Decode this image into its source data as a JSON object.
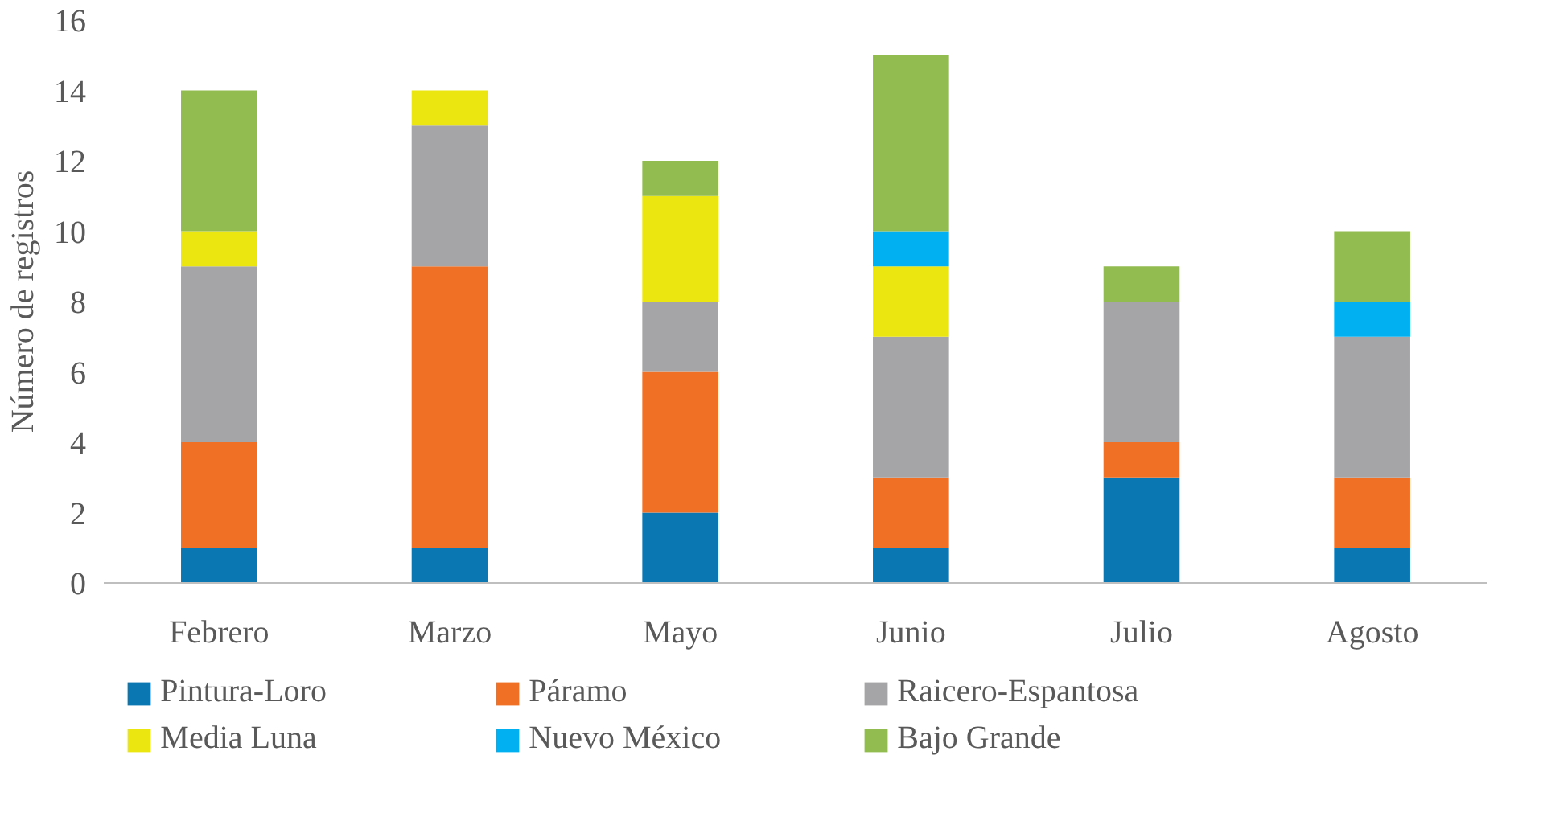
{
  "chart_data": {
    "type": "bar",
    "stacked": true,
    "ylabel": "Número de registros",
    "categories": [
      "Febrero",
      "Marzo",
      "Mayo",
      "Junio",
      "Julio",
      "Agosto"
    ],
    "ylim": [
      0,
      16
    ],
    "yticks": [
      0,
      2,
      4,
      6,
      8,
      10,
      12,
      14,
      16
    ],
    "grid": false,
    "legend": "bottom",
    "series": [
      {
        "name": "Pintura-Loro",
        "color": "#0a77b3",
        "values": [
          1,
          1,
          2,
          1,
          3,
          1
        ]
      },
      {
        "name": "Páramo",
        "color": "#f07026",
        "values": [
          3,
          8,
          4,
          2,
          1,
          2
        ]
      },
      {
        "name": "Raicero-Espantosa",
        "color": "#a5a5a8",
        "values": [
          5,
          4,
          2,
          4,
          4,
          4
        ]
      },
      {
        "name": "Media Luna",
        "color": "#ebe60f",
        "values": [
          1,
          1,
          3,
          2,
          0,
          0
        ]
      },
      {
        "name": "Nuevo México",
        "color": "#00b0f0",
        "values": [
          0,
          0,
          0,
          1,
          0,
          1
        ]
      },
      {
        "name": "Bajo Grande",
        "color": "#92bb50",
        "values": [
          4,
          0,
          1,
          5,
          1,
          2
        ]
      }
    ]
  }
}
